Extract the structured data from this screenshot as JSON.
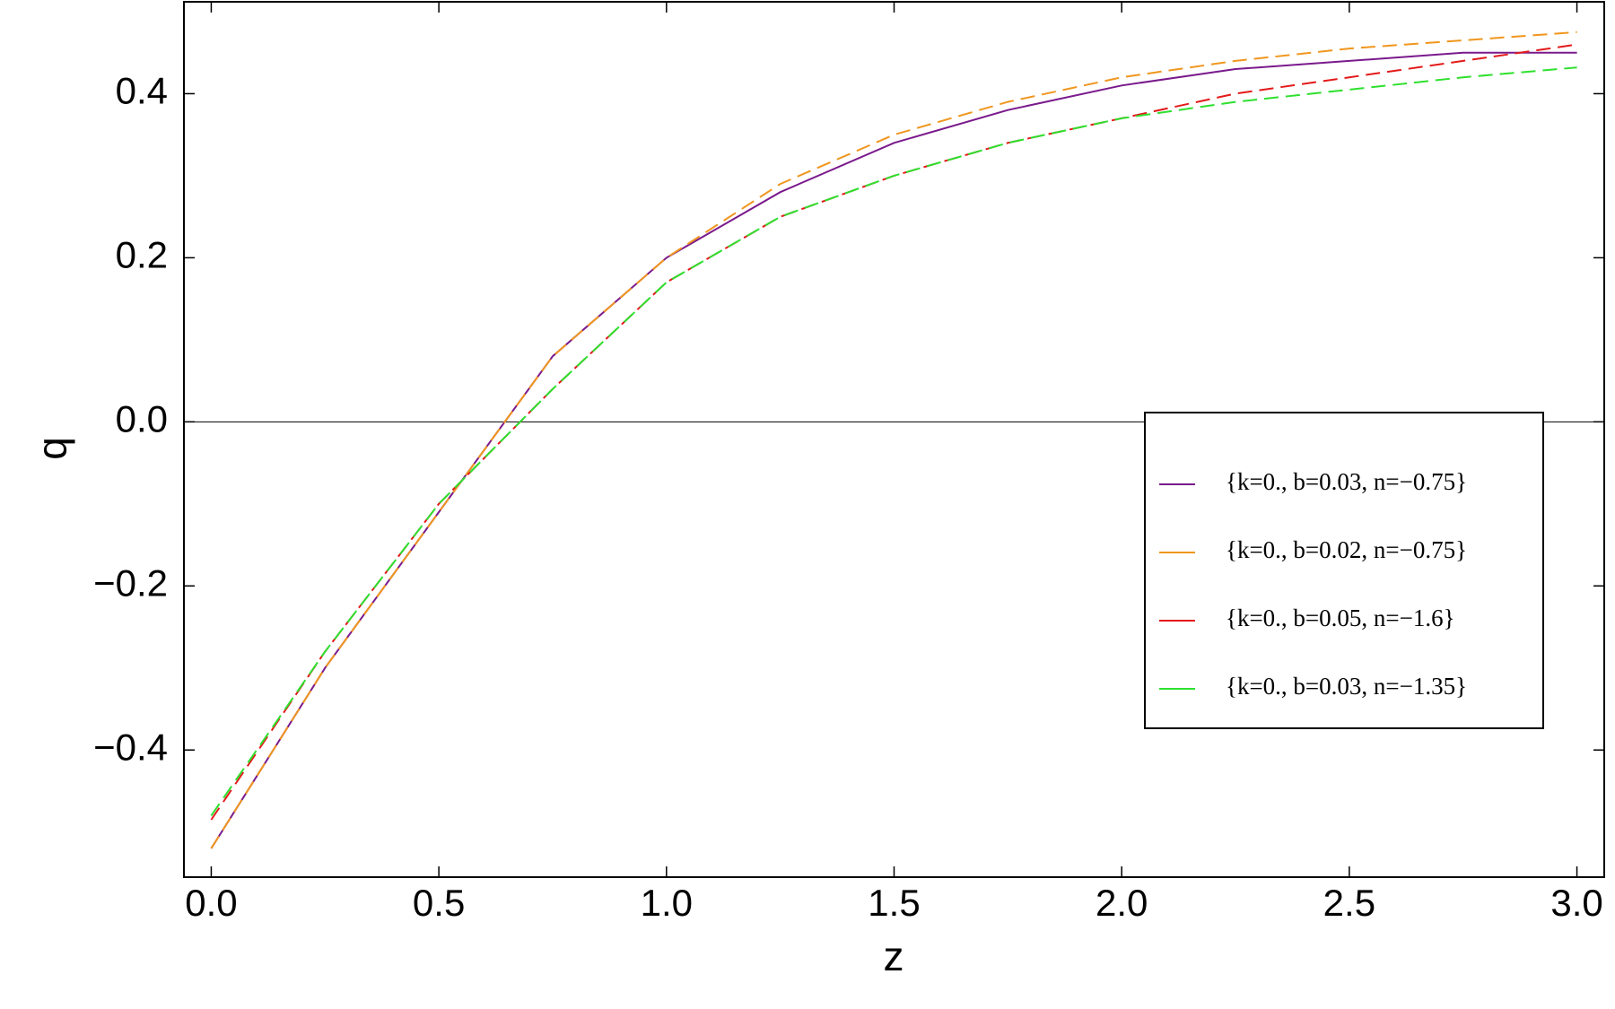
{
  "chart_data": {
    "type": "line",
    "x_label": "z",
    "y_label": "q",
    "x": [
      0,
      0.25,
      0.5,
      0.75,
      1.0,
      1.25,
      1.5,
      1.75,
      2.0,
      2.25,
      2.5,
      2.75,
      3.0
    ],
    "series": [
      {
        "name": "{k=0., b=0.03, n=−0.75}",
        "color": "#7a1a8c",
        "dashed": false,
        "values": [
          -0.52,
          -0.3,
          -0.11,
          0.08,
          0.2,
          0.28,
          0.34,
          0.38,
          0.41,
          0.43,
          0.44,
          0.45,
          0.45
        ]
      },
      {
        "name": "{k=0., b=0.02, n=−0.75}",
        "color": "#f0961e",
        "dashed": true,
        "values": [
          -0.52,
          -0.3,
          -0.11,
          0.08,
          0.2,
          0.29,
          0.35,
          0.39,
          0.42,
          0.44,
          0.455,
          0.465,
          0.475
        ]
      },
      {
        "name": "{k=0., b=0.05, n=−1.6}",
        "color": "#e31a1a",
        "dashed": true,
        "values": [
          -0.485,
          -0.28,
          -0.1,
          0.04,
          0.17,
          0.25,
          0.3,
          0.34,
          0.37,
          0.4,
          0.42,
          0.44,
          0.46
        ]
      },
      {
        "name": "{k=0., b=0.03, n=−1.35}",
        "color": "#2ee02e",
        "dashed": true,
        "values": [
          -0.48,
          -0.28,
          -0.1,
          0.04,
          0.17,
          0.25,
          0.3,
          0.34,
          0.37,
          0.39,
          0.405,
          0.42,
          0.432
        ]
      }
    ],
    "xlim": [
      -0.06,
      3.06
    ],
    "ylim": [
      -0.555,
      0.512
    ],
    "xticks": [
      {
        "value": 0,
        "label": "0.0"
      },
      {
        "value": 0.5,
        "label": "0.5"
      },
      {
        "value": 1,
        "label": "1.0"
      },
      {
        "value": 1.5,
        "label": "1.5"
      },
      {
        "value": 2,
        "label": "2.0"
      },
      {
        "value": 2.5,
        "label": "2.5"
      },
      {
        "value": 3,
        "label": "3.0"
      }
    ],
    "yticks": [
      {
        "value": -0.4,
        "label": "−0.4"
      },
      {
        "value": -0.2,
        "label": "−0.2"
      },
      {
        "value": 0,
        "label": "0.0"
      },
      {
        "value": 0.2,
        "label": "0.2"
      },
      {
        "value": 0.4,
        "label": "0.4"
      }
    ],
    "zero_line": true,
    "legend": "right"
  }
}
